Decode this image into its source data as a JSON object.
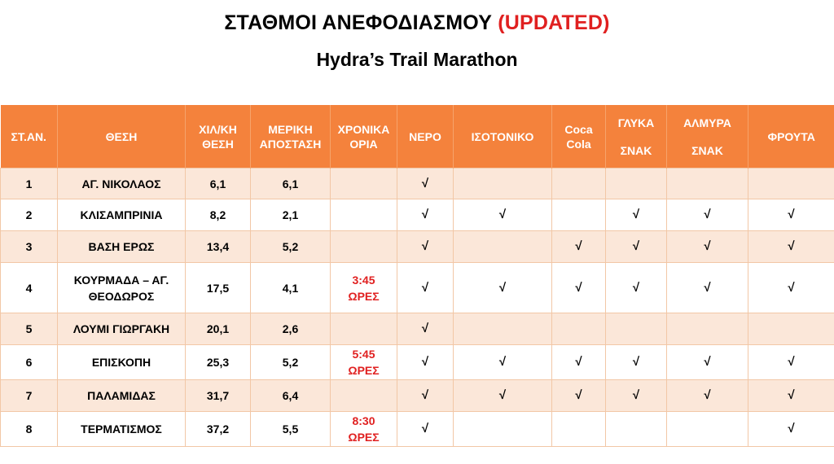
{
  "title": {
    "main": "ΣΤΑΘΜΟΙ ΑΝΕΦΟΔΙΑΣΜΟΥ",
    "highlight": "(UPDATED)"
  },
  "subtitle": "Hydra’s Trail Marathon",
  "colors": {
    "header_bg": "#f4823c",
    "row_alt_bg": "#fbe7d9",
    "highlight": "#e02020"
  },
  "check_symbol": "√",
  "headers": [
    {
      "lines": [
        "ΣΤ.ΑΝ."
      ]
    },
    {
      "lines": [
        "ΘΕΣΗ"
      ]
    },
    {
      "lines": [
        "ΧΙΛ/ΚΗ",
        "ΘΕΣΗ"
      ]
    },
    {
      "lines": [
        "ΜΕΡΙΚΗ",
        "ΑΠΟΣΤΑΣΗ"
      ]
    },
    {
      "lines": [
        "ΧΡΟΝΙΚΑ",
        "ΟΡΙΑ"
      ]
    },
    {
      "lines": [
        "ΝΕΡΟ"
      ]
    },
    {
      "lines": [
        "ΙΣΟΤΟΝΙΚΟ"
      ]
    },
    {
      "lines": [
        "Coca",
        "Cola"
      ]
    },
    {
      "lines": [
        "ΓΛΥΚΑ",
        "ΣΝΑΚ"
      ]
    },
    {
      "lines": [
        "ΑΛΜΥΡΑ",
        "ΣΝΑΚ"
      ]
    },
    {
      "lines": [
        "ΦΡΟΥΤΑ"
      ]
    }
  ],
  "rows": [
    {
      "station": "1",
      "location": "ΑΓ. ΝΙΚΟΛΑΟΣ",
      "km": "6,1",
      "partial": "6,1",
      "cutoff": [
        "",
        ""
      ],
      "water": "√",
      "isotonic": "",
      "coca_cola": "",
      "sweet": "",
      "salty": "",
      "fruit": ""
    },
    {
      "station": "2",
      "location": "ΚΛΙΣΑΜΠΡΙΝΙΑ",
      "km": "8,2",
      "partial": "2,1",
      "cutoff": [
        "",
        ""
      ],
      "water": "√",
      "isotonic": "√",
      "coca_cola": "",
      "sweet": "√",
      "salty": "√",
      "fruit": "√"
    },
    {
      "station": "3",
      "location": "ΒΑΣΗ ΕΡΩΣ",
      "km": "13,4",
      "partial": "5,2",
      "cutoff": [
        "",
        ""
      ],
      "water": "√",
      "isotonic": "",
      "coca_cola": "√",
      "sweet": "√",
      "salty": "√",
      "fruit": "√"
    },
    {
      "station": "4",
      "location": "ΚΟΥΡΜΑΔΑ – ΑΓ. ΘΕΟΔΩΡΟΣ",
      "km": "17,5",
      "partial": "4,1",
      "cutoff": [
        "3:45",
        "ΩΡΕΣ"
      ],
      "water": "√",
      "isotonic": "√",
      "coca_cola": "√",
      "sweet": "√",
      "salty": "√",
      "fruit": "√"
    },
    {
      "station": "5",
      "location": "ΛΟΥΜΙ ΓΙΩΡΓΑΚΗ",
      "km": "20,1",
      "partial": "2,6",
      "cutoff": [
        "",
        ""
      ],
      "water": "√",
      "isotonic": "",
      "coca_cola": "",
      "sweet": "",
      "salty": "",
      "fruit": ""
    },
    {
      "station": "6",
      "location": "ΕΠΙΣΚΟΠΗ",
      "km": "25,3",
      "partial": "5,2",
      "cutoff": [
        "5:45",
        "ΩΡΕΣ"
      ],
      "water": "√",
      "isotonic": "√",
      "coca_cola": "√",
      "sweet": "√",
      "salty": "√",
      "fruit": "√"
    },
    {
      "station": "7",
      "location": "ΠΑΛΑΜΙΔΑΣ",
      "km": "31,7",
      "partial": "6,4",
      "cutoff": [
        "",
        ""
      ],
      "water": "√",
      "isotonic": "√",
      "coca_cola": "√",
      "sweet": "√",
      "salty": "√",
      "fruit": "√"
    },
    {
      "station": "8",
      "location": "ΤΕΡΜΑΤΙΣΜΟΣ",
      "km": "37,2",
      "partial": "5,5",
      "cutoff": [
        "8:30",
        "ΩΡΕΣ"
      ],
      "water": "√",
      "isotonic": "",
      "coca_cola": "",
      "sweet": "",
      "salty": "",
      "fruit": "√"
    }
  ]
}
